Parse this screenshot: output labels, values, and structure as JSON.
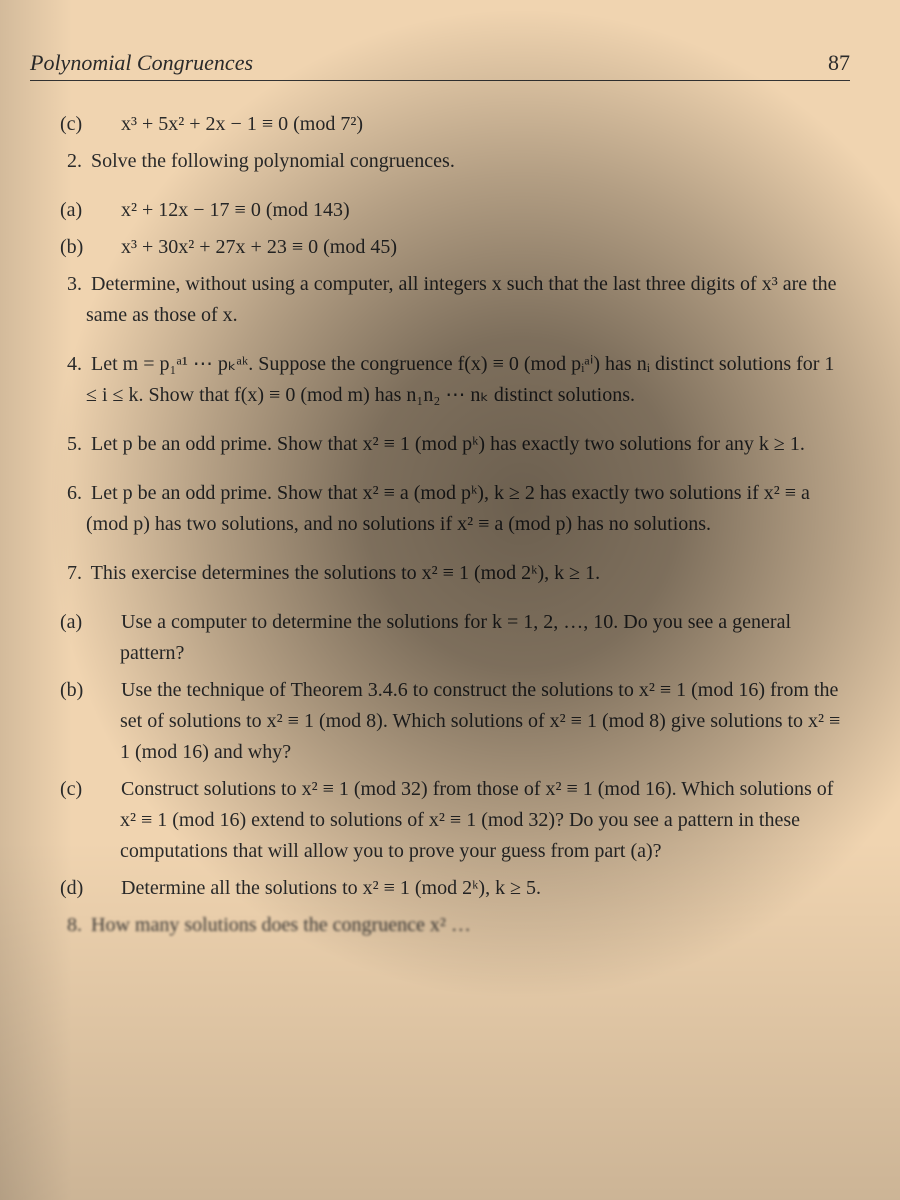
{
  "page": {
    "running_head": "Polynomial Congruences",
    "number": "87",
    "bg_color": "#f0d4b0",
    "text_color": "#2a2a2a",
    "font_family": "Georgia, Times New Roman, serif",
    "body_fontsize": 20,
    "header_fontsize": 22
  },
  "items": {
    "c1": {
      "label": "(c)",
      "text": "x³ + 5x² + 2x − 1 ≡ 0 (mod 7²)"
    },
    "p2": {
      "num": "2.",
      "text": "Solve the following polynomial congruences."
    },
    "p2a": {
      "label": "(a)",
      "text": "x² + 12x − 17 ≡ 0 (mod 143)"
    },
    "p2b": {
      "label": "(b)",
      "text": "x³ + 30x² + 27x + 23 ≡ 0 (mod 45)"
    },
    "p3": {
      "num": "3.",
      "text": "Determine, without using a computer, all integers x such that the last three digits of x³ are the same as those of x."
    },
    "p4": {
      "num": "4.",
      "text": "Let m = p₁ᵃ¹ ⋯ pₖᵃᵏ. Suppose the congruence f(x) ≡ 0 (mod pᵢᵃⁱ) has nᵢ distinct solutions for 1 ≤ i ≤ k. Show that f(x) ≡ 0 (mod m) has n₁n₂ ⋯ nₖ distinct solutions."
    },
    "p5": {
      "num": "5.",
      "text": "Let p be an odd prime. Show that x² ≡ 1 (mod pᵏ) has exactly two solutions for any k ≥ 1."
    },
    "p6": {
      "num": "6.",
      "text": "Let p be an odd prime. Show that x² ≡ a (mod pᵏ), k ≥ 2 has exactly two solutions if x² ≡ a (mod p) has two solutions, and no solutions if x² ≡ a (mod p) has no solutions."
    },
    "p7": {
      "num": "7.",
      "text": "This exercise determines the solutions to x² ≡ 1 (mod 2ᵏ), k ≥ 1."
    },
    "p7a": {
      "label": "(a)",
      "text": "Use a computer to determine the solutions for k = 1, 2, …, 10. Do you see a general pattern?"
    },
    "p7b": {
      "label": "(b)",
      "text": "Use the technique of Theorem 3.4.6 to construct the solutions to x² ≡ 1 (mod 16) from the set of solutions to x² ≡ 1 (mod 8). Which solutions of x² ≡ 1 (mod 8) give solutions to x² ≡ 1 (mod 16) and why?"
    },
    "p7c": {
      "label": "(c)",
      "text": "Construct solutions to x² ≡ 1 (mod 32) from those of x² ≡ 1 (mod 16). Which solutions of x² ≡ 1 (mod 16) extend to solutions of x² ≡ 1 (mod 32)? Do you see a pattern in these computations that will allow you to prove your guess from part (a)?"
    },
    "p7d": {
      "label": "(d)",
      "text": "Determine all the solutions to x² ≡ 1 (mod 2ᵏ), k ≥ 5."
    },
    "p8": {
      "num": "8.",
      "text": "How many solutions does the congruence x² …"
    }
  }
}
